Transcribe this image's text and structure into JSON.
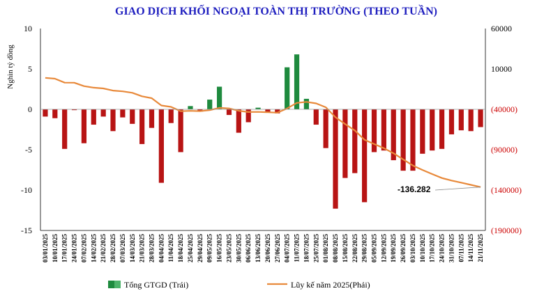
{
  "chart_data": {
    "type": "bar",
    "title": "GIAO DỊCH KHỐI NGOẠI TOÀN THỊ TRƯỜNG (THEO TUẦN)",
    "ylabel": "Nghìn tỷ đồng",
    "ylim": [
      -15,
      10
    ],
    "y2lim": [
      -190000,
      60000
    ],
    "yticks": [
      "10",
      "5",
      "0",
      "-5",
      "-10",
      "-15"
    ],
    "y2ticks": [
      {
        "label": "60000",
        "value": 60000,
        "color": "#000000"
      },
      {
        "label": "10000",
        "value": 10000,
        "color": "#000000"
      },
      {
        "label": "(40000)",
        "value": -40000,
        "color": "#cc0000"
      },
      {
        "label": "(90000)",
        "value": -90000,
        "color": "#cc0000"
      },
      {
        "label": "(140000)",
        "value": -140000,
        "color": "#cc0000"
      },
      {
        "label": "(190000)",
        "value": -190000,
        "color": "#cc0000"
      }
    ],
    "categories": [
      "03/01/2025",
      "10/01/2025",
      "17/01/2025",
      "24/01/2025",
      "07/02/2025",
      "14/02/2025",
      "21/02/2025",
      "28/02/2025",
      "07/03/2025",
      "14/03/2025",
      "21/03/2025",
      "28/03/2025",
      "04/04/2025",
      "11/04/2025",
      "18/04/2025",
      "25/04/2025",
      "29/04/2025",
      "09/05/2025",
      "16/05/2025",
      "23/05/2025",
      "30/05/2025",
      "06/06/2025",
      "13/06/2025",
      "20/06/2025",
      "27/06/2025",
      "04/07/2025",
      "11/07/2025",
      "18/07/2025",
      "25/07/2025",
      "01/08/2025",
      "08/08/2025",
      "15/08/2025",
      "22/08/2025",
      "29/08/2025",
      "05/09/2025",
      "12/09/2025",
      "19/09/2025",
      "26/09/2025",
      "03/10/2025",
      "10/10/2025",
      "17/10/2025",
      "24/10/2025",
      "31/10/2025",
      "07/11/2025",
      "14/11/2025",
      "21/11/2025"
    ],
    "series": [
      {
        "name": "Tổng GTGD (Trái)",
        "type": "bar",
        "axis": "left",
        "positive_color": "#1e8a3e",
        "negative_color": "#b81414",
        "values": [
          -0.9,
          -1.1,
          -4.9,
          -0.1,
          -4.2,
          -1.9,
          -0.9,
          -2.7,
          -1.0,
          -1.8,
          -4.3,
          -2.3,
          -9.1,
          -1.7,
          -5.3,
          0.4,
          -0.3,
          1.2,
          2.8,
          -0.7,
          -2.9,
          -1.6,
          0.2,
          -0.4,
          -0.5,
          5.2,
          6.8,
          1.3,
          -1.9,
          -4.8,
          -12.3,
          -8.5,
          -7.9,
          -11.5,
          -5.3,
          -5.1,
          -6.3,
          -7.6,
          -7.6,
          -5.5,
          -5.1,
          -4.9,
          -3.1,
          -2.6,
          -2.7,
          -2.2
        ]
      },
      {
        "name": "Lũy kế năm 2025(Phải)",
        "type": "line",
        "axis": "right",
        "color": "#e8893a",
        "values": [
          -1000,
          -2100,
          -7000,
          -7100,
          -11300,
          -13200,
          -14100,
          -16800,
          -17800,
          -19600,
          -23900,
          -26200,
          -35300,
          -37000,
          -42300,
          -41900,
          -42200,
          -41000,
          -38200,
          -38900,
          -41800,
          -43400,
          -43200,
          -43600,
          -44100,
          -38900,
          -32100,
          -30800,
          -32700,
          -37500,
          -49800,
          -58300,
          -66200,
          -77700,
          -83000,
          -88100,
          -94400,
          -102000,
          -109600,
          -115100,
          -120200,
          -125100,
          -128200,
          -130800,
          -133500,
          -136282
        ]
      }
    ],
    "annotations": [
      {
        "text": "-136.282"
      }
    ],
    "legend": {
      "position": "bottom",
      "items": [
        {
          "label": "Tổng GTGD (Trái)"
        },
        {
          "label": "Lũy kế năm 2025(Phải)"
        }
      ]
    },
    "grid": false
  }
}
